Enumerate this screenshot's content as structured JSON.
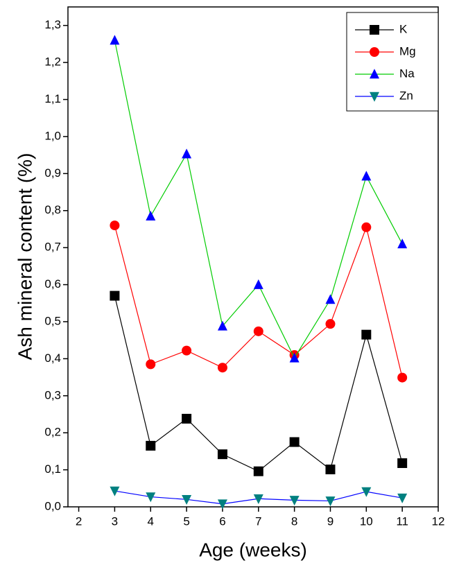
{
  "chart_data": {
    "type": "line",
    "x_label": "Age (weeks)",
    "y_label": "Ash mineral content (%)",
    "x": [
      3,
      4,
      5,
      6,
      7,
      8,
      9,
      10,
      11
    ],
    "xlim": [
      1.7,
      12
    ],
    "xticks": [
      2,
      3,
      4,
      5,
      6,
      7,
      8,
      9,
      10,
      11,
      12
    ],
    "ylim": [
      0,
      1.35
    ],
    "yticks": [
      {
        "value": 0,
        "label": "0,0"
      },
      {
        "value": 0.1,
        "label": "0,1"
      },
      {
        "value": 0.2,
        "label": "0,2"
      },
      {
        "value": 0.3,
        "label": "0,3"
      },
      {
        "value": 0.4,
        "label": "0,4"
      },
      {
        "value": 0.5,
        "label": "0,5"
      },
      {
        "value": 0.6,
        "label": "0,6"
      },
      {
        "value": 0.7,
        "label": "0,7"
      },
      {
        "value": 0.8,
        "label": "0,8"
      },
      {
        "value": 0.9,
        "label": "0,9"
      },
      {
        "value": 1.0,
        "label": "1,0"
      },
      {
        "value": 1.1,
        "label": "1,1"
      },
      {
        "value": 1.2,
        "label": "1,2"
      },
      {
        "value": 1.3,
        "label": "1,3"
      }
    ],
    "legend": "top-right",
    "series": [
      {
        "name": "K",
        "color": "#000000",
        "line_color": "#000000",
        "marker": "square",
        "values": [
          0.57,
          0.165,
          0.238,
          0.142,
          0.096,
          0.175,
          0.101,
          0.465,
          0.118
        ]
      },
      {
        "name": "Mg",
        "color": "#ff0000",
        "line_color": "#ff0000",
        "marker": "circle",
        "values": [
          0.76,
          0.385,
          0.422,
          0.376,
          0.474,
          0.41,
          0.494,
          0.755,
          0.349
        ]
      },
      {
        "name": "Na",
        "color": "#0000ff",
        "line_color": "#00cc00",
        "marker": "triangle-up",
        "values": [
          1.26,
          0.785,
          0.953,
          0.488,
          0.6,
          0.402,
          0.56,
          0.893,
          0.71
        ]
      },
      {
        "name": "Zn",
        "color": "#008080",
        "line_color": "#0000ff",
        "marker": "triangle-down",
        "values": [
          0.043,
          0.027,
          0.02,
          0.008,
          0.022,
          0.018,
          0.016,
          0.041,
          0.024
        ]
      }
    ]
  }
}
